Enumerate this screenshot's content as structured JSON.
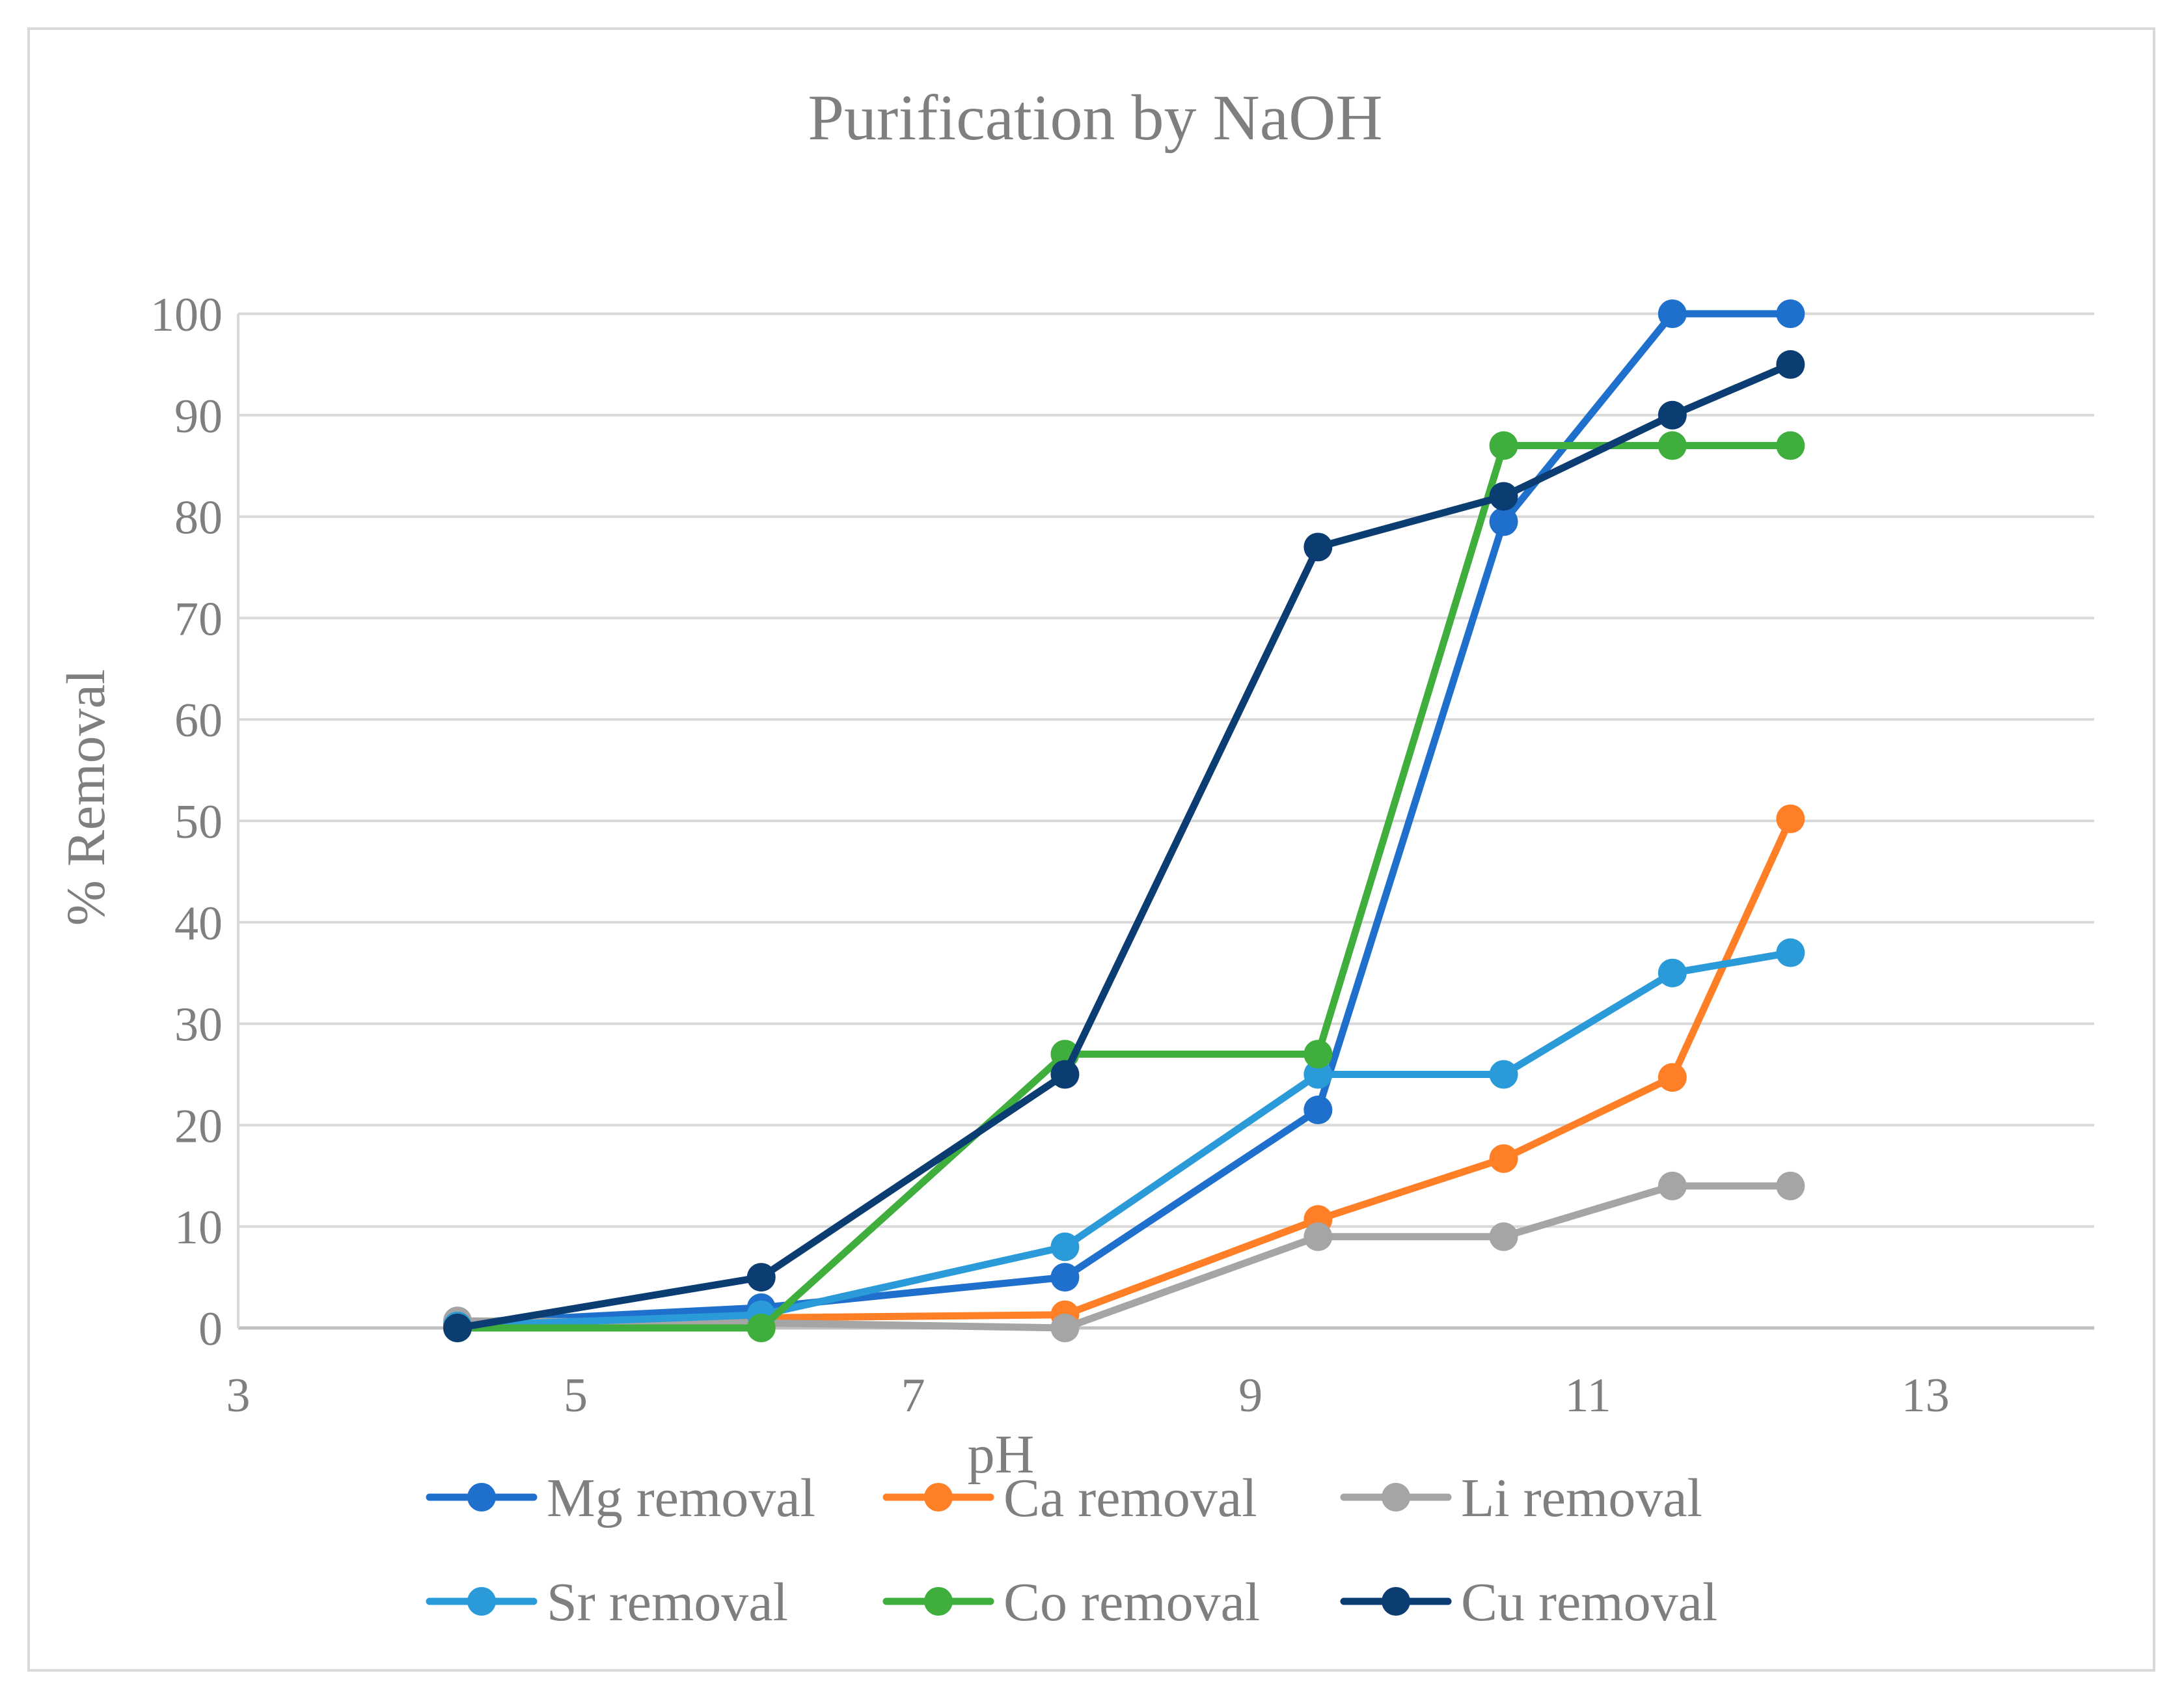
{
  "chart_data": {
    "type": "scatter",
    "title": "Purification by NaOH",
    "xlabel": "pH",
    "ylabel": "% Removal",
    "xlim": [
      3,
      14
    ],
    "ylim": [
      0,
      100
    ],
    "xticks": [
      3,
      5,
      7,
      9,
      11,
      13
    ],
    "yticks": [
      0,
      10,
      20,
      30,
      40,
      50,
      60,
      70,
      80,
      90,
      100
    ],
    "grid": "horizontal",
    "legend_position": "bottom",
    "x": [
      4.3,
      6.1,
      7.9,
      9.4,
      10.5,
      11.5,
      12.2
    ],
    "series": [
      {
        "name": "Mg removal",
        "color": "#1f6fcc",
        "values": [
          0.5,
          2,
          5,
          21.5,
          79.5,
          100,
          100
        ]
      },
      {
        "name": "Ca removal",
        "color": "#ff7f27",
        "values": [
          0.3,
          1,
          1.3,
          10.7,
          16.7,
          24.7,
          50.2
        ]
      },
      {
        "name": "Li removal",
        "color": "#a5a5a5",
        "values": [
          0.7,
          0.5,
          0,
          9,
          9,
          14,
          14
        ]
      },
      {
        "name": "Sr removal",
        "color": "#2a9ad8",
        "values": [
          0.2,
          1.3,
          8,
          25,
          25,
          35,
          37
        ]
      },
      {
        "name": "Co removal",
        "color": "#3fae3c",
        "values": [
          0,
          0,
          27,
          27,
          87,
          87,
          87
        ]
      },
      {
        "name": "Cu removal",
        "color": "#0b3d73",
        "values": [
          0,
          5,
          25,
          77,
          82,
          90,
          95
        ]
      }
    ]
  }
}
